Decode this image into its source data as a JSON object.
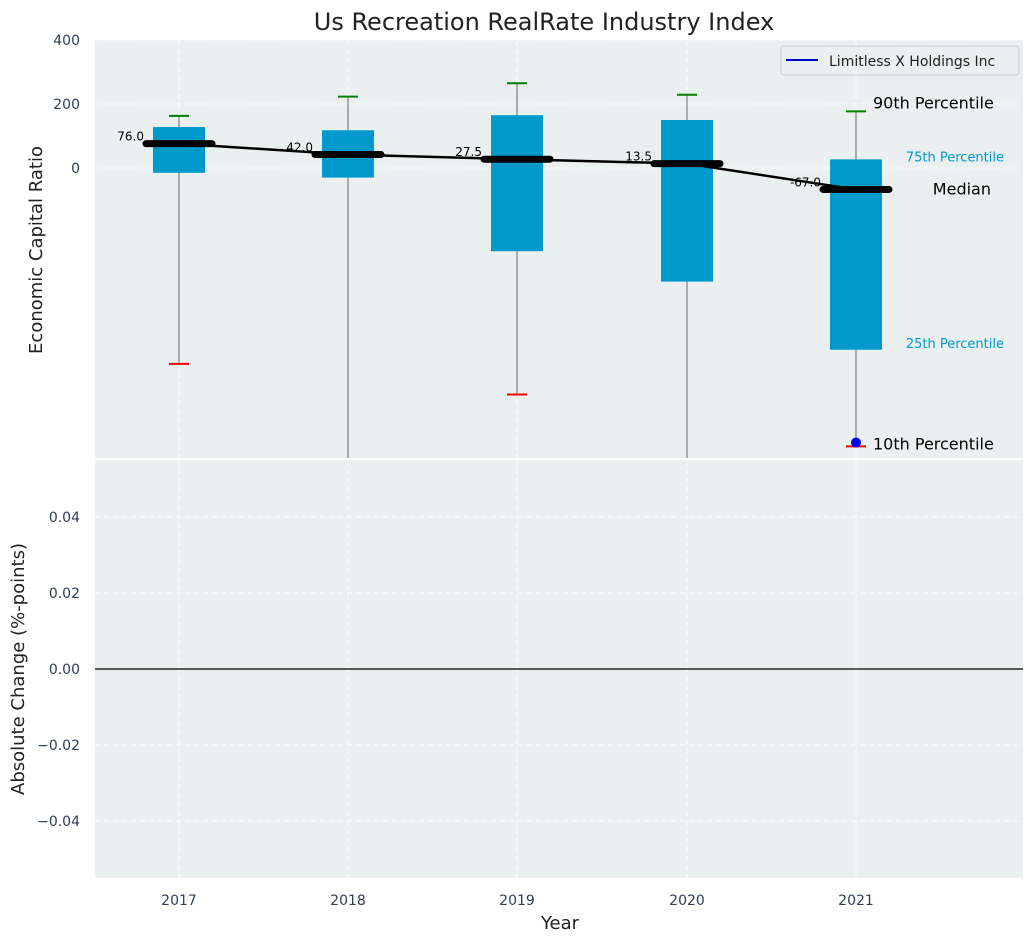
{
  "chart_data": [
    {
      "type": "box",
      "title": "Us Recreation RealRate Industry Index",
      "ylabel": "Economic Capital Ratio",
      "ylim": [
        -910,
        400
      ],
      "yticks": [
        "400",
        "200",
        "0"
      ],
      "ytick_values": [
        400,
        200,
        0
      ],
      "categories": [
        "2017",
        "2018",
        "2019",
        "2020",
        "2021"
      ],
      "p90": [
        163,
        223,
        265,
        229,
        177
      ],
      "p75": [
        128,
        118,
        165,
        150,
        27
      ],
      "median": [
        76.0,
        42.0,
        27.5,
        13.5,
        -67.0
      ],
      "p25": [
        -15,
        -30,
        -260,
        -355,
        -568
      ],
      "p10": [
        -612,
        -1000,
        -708,
        -1000,
        -870
      ],
      "median_labels": [
        "76.0",
        "42.0",
        "27.5",
        "13.5",
        "-67.0"
      ],
      "company": {
        "name": "Limitless X Holdings Inc",
        "year": "2021",
        "value": -858
      },
      "annotations": {
        "p90": "90th Percentile",
        "p75": "75th Percentile",
        "median": "Median",
        "p25": "25th Percentile",
        "p10": "10th Percentile"
      },
      "colors": {
        "box": "#0099cc",
        "median_line": "#000000",
        "p90_cap": "#008000",
        "p10_cap": "#ff0000",
        "whisker": "#808080",
        "company": "#0000ff",
        "percentile_text": "#0099cc",
        "background": "#eaeff0"
      },
      "legend": {
        "position": "top-right"
      },
      "grid": true
    },
    {
      "type": "line",
      "ylabel": "Absolute Change (%-points)",
      "xlabel": "Year",
      "ylim": [
        -0.055,
        0.055
      ],
      "yticks": [
        "0.04",
        "0.02",
        "0.00",
        "−0.02",
        "−0.04"
      ],
      "ytick_values": [
        0.04,
        0.02,
        0.0,
        -0.02,
        -0.04
      ],
      "categories": [
        "2017",
        "2018",
        "2019",
        "2020",
        "2021"
      ],
      "baseline": 0.0,
      "grid": true
    }
  ]
}
